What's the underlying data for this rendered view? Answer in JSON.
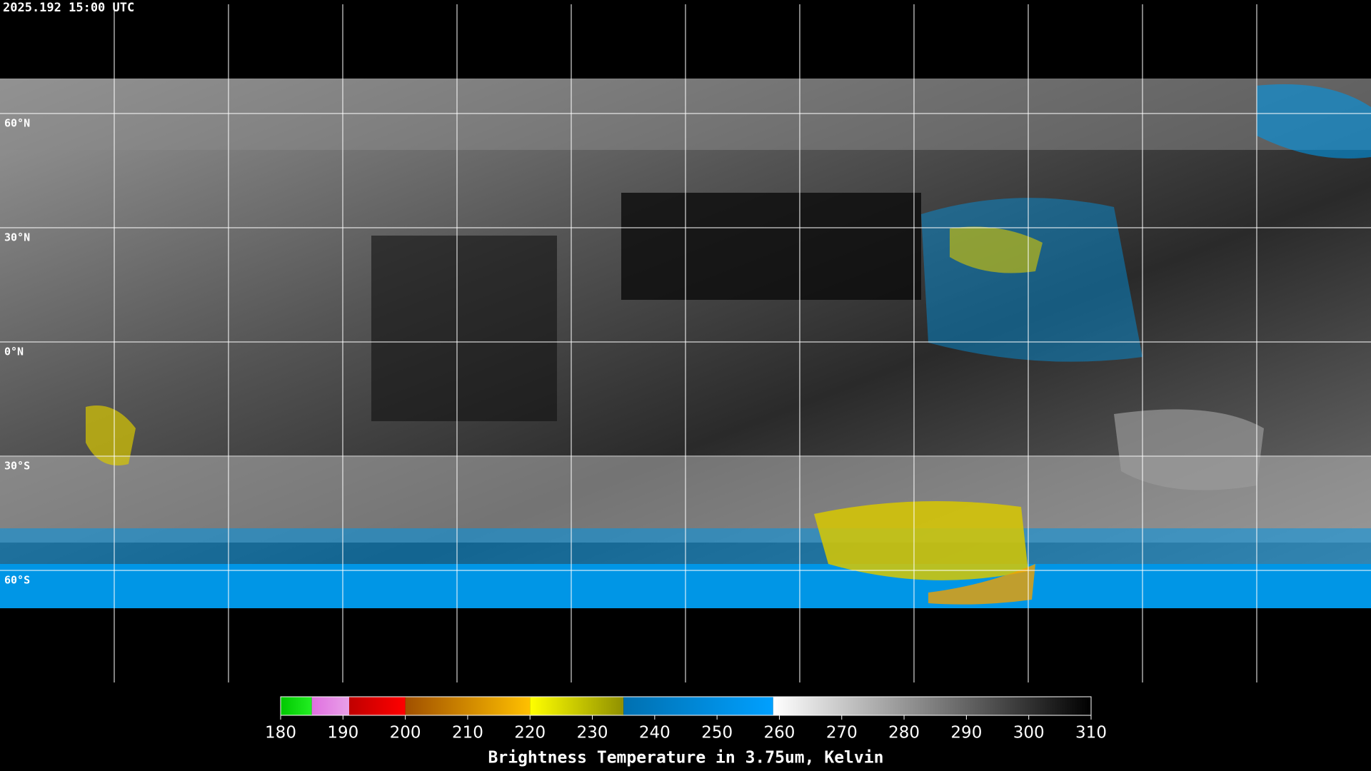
{
  "timestamp": "2025.192 15:00 UTC",
  "latitudes": [
    {
      "value": 60,
      "label": "60°N"
    },
    {
      "value": 30,
      "label": "30°N"
    },
    {
      "value": 0,
      "label": "0°N"
    },
    {
      "value": -30,
      "label": "30°S"
    },
    {
      "value": -60,
      "label": "60°S"
    }
  ],
  "colorbar": {
    "title": "Brightness Temperature in 3.75um, Kelvin",
    "range": [
      180,
      310
    ],
    "ticks": [
      180,
      190,
      200,
      210,
      220,
      230,
      240,
      250,
      260,
      270,
      280,
      290,
      300,
      310
    ],
    "segments": [
      {
        "from": 180,
        "to": 185,
        "colors": [
          "#00c800",
          "#22ee22"
        ]
      },
      {
        "from": 185,
        "to": 191,
        "colors": [
          "#e070e0",
          "#e8a0e8"
        ]
      },
      {
        "from": 191,
        "to": 200,
        "colors": [
          "#c00000",
          "#ff0000"
        ]
      },
      {
        "from": 200,
        "to": 220,
        "colors": [
          "#a05000",
          "#ffc000"
        ]
      },
      {
        "from": 220,
        "to": 235,
        "colors": [
          "#ffff00",
          "#909000"
        ]
      },
      {
        "from": 235,
        "to": 259,
        "colors": [
          "#0070b0",
          "#00a0ff"
        ]
      },
      {
        "from": 259,
        "to": 310,
        "colors": [
          "#ffffff",
          "#000000"
        ]
      }
    ]
  }
}
